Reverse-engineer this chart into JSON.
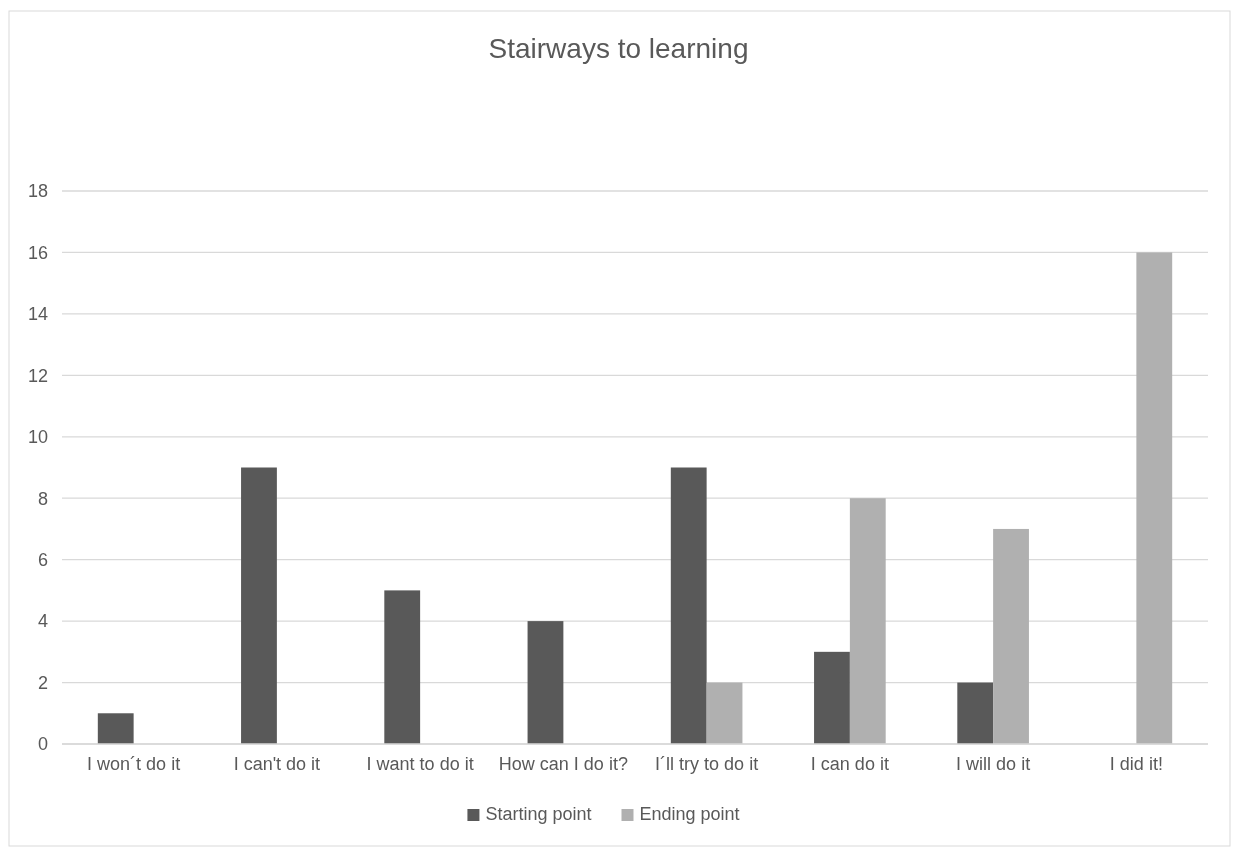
{
  "chart_data": {
    "type": "bar",
    "title": "Stairways to  learning",
    "categories": [
      "I won´t do it",
      "I can't do it",
      "I want to do it",
      "How can I do it?",
      "I´ll try to do it",
      "I can do it",
      "I will do it",
      "I did it!"
    ],
    "series": [
      {
        "name": "Starting point",
        "color": "#595959",
        "values": [
          1,
          9,
          5,
          4,
          9,
          3,
          2,
          null
        ]
      },
      {
        "name": "Ending point",
        "color": "#b0b0b0",
        "values": [
          null,
          null,
          null,
          null,
          2,
          8,
          7,
          16
        ]
      }
    ],
    "ylim": [
      0,
      18
    ],
    "yticks": [
      0,
      2,
      4,
      6,
      8,
      10,
      12,
      14,
      16,
      18
    ],
    "grid": "y",
    "legend": "bottom"
  }
}
